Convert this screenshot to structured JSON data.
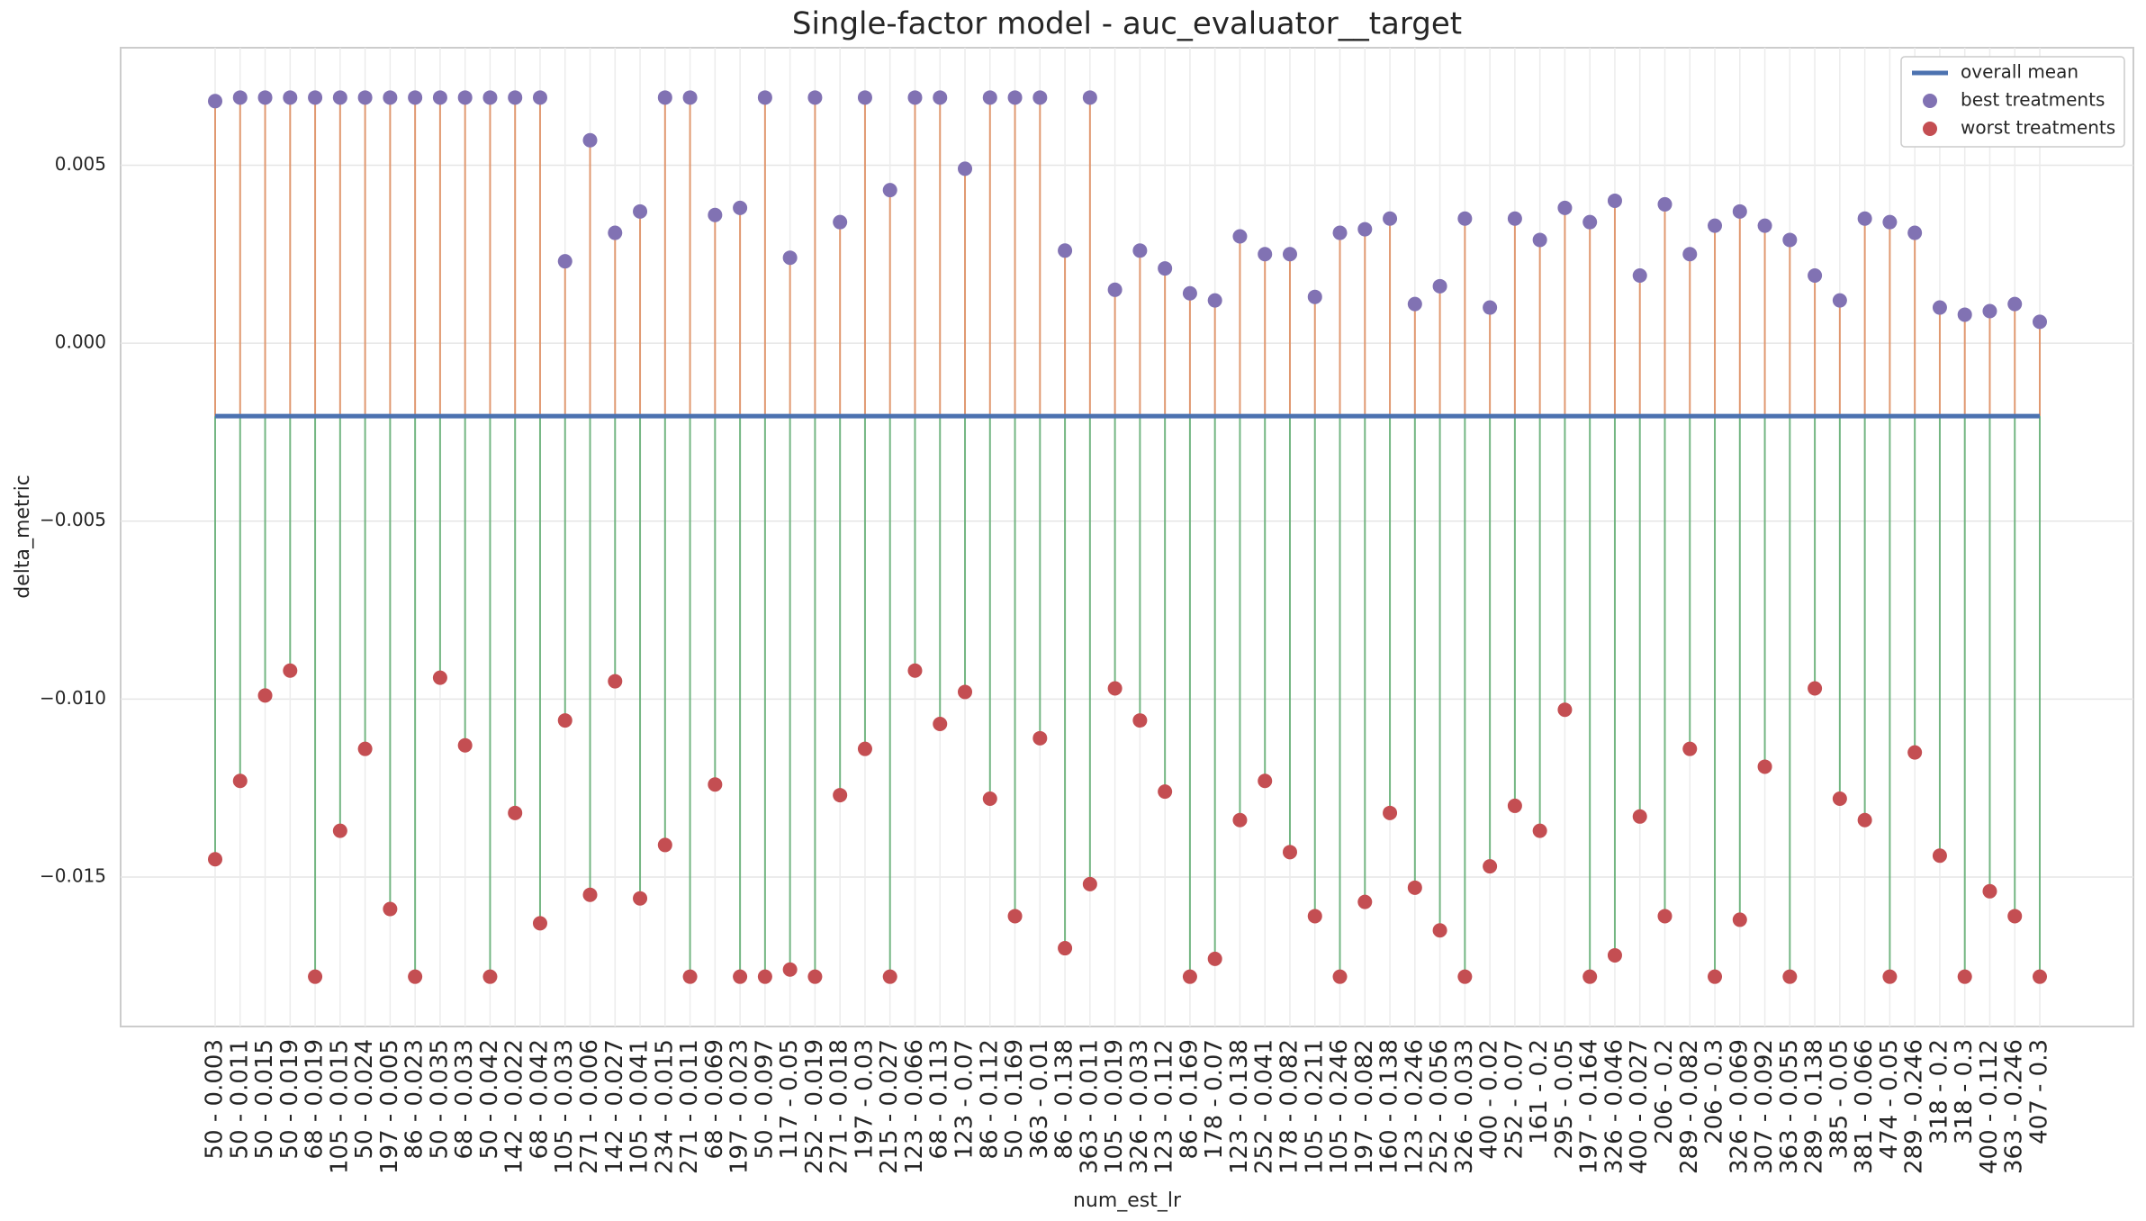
{
  "chart_data": {
    "type": "stem",
    "title": "Single-factor model - auc_evaluator__target",
    "x_label": "num_est_lr",
    "y_label": "delta_metric",
    "categories": [
      "50 - 0.003",
      "50 - 0.011",
      "50 - 0.015",
      "50 - 0.019",
      "68 - 0.019",
      "105 - 0.015",
      "50 - 0.024",
      "197 - 0.005",
      "86 - 0.023",
      "50 - 0.035",
      "68 - 0.033",
      "50 - 0.042",
      "142 - 0.022",
      "68 - 0.042",
      "105 - 0.033",
      "271 - 0.006",
      "142 - 0.027",
      "105 - 0.041",
      "234 - 0.015",
      "271 - 0.011",
      "68 - 0.069",
      "197 - 0.023",
      "50 - 0.097",
      "117 - 0.05",
      "252 - 0.019",
      "271 - 0.018",
      "197 - 0.03",
      "215 - 0.027",
      "123 - 0.066",
      "68 - 0.113",
      "123 - 0.07",
      "86 - 0.112",
      "50 - 0.169",
      "363 - 0.01",
      "86 - 0.138",
      "363 - 0.011",
      "105 - 0.019",
      "326 - 0.033",
      "123 - 0.112",
      "86 - 0.169",
      "178 - 0.07",
      "123 - 0.138",
      "252 - 0.041",
      "178 - 0.082",
      "105 - 0.211",
      "105 - 0.246",
      "197 - 0.082",
      "160 - 0.138",
      "123 - 0.246",
      "252 - 0.056",
      "326 - 0.033",
      "400 - 0.02",
      "252 - 0.07",
      "161 - 0.2",
      "295 - 0.05",
      "197 - 0.164",
      "326 - 0.046",
      "400 - 0.027",
      "206 - 0.2",
      "289 - 0.082",
      "206 - 0.3",
      "326 - 0.069",
      "307 - 0.092",
      "363 - 0.055",
      "289 - 0.138",
      "385 - 0.05",
      "381 - 0.066",
      "474 - 0.05",
      "289 - 0.246",
      "318 - 0.2",
      "318 - 0.3",
      "400 - 0.112",
      "363 - 0.246",
      "407 - 0.3"
    ],
    "mean": {
      "name": "overall mean",
      "color": "#4c72b0",
      "value": -0.00205
    },
    "series": [
      {
        "name": "best treatments",
        "color": "#8172b3",
        "stem_color": "#dd8452",
        "values": [
          0.0068,
          0.0069,
          0.0069,
          0.0069,
          0.0069,
          0.0069,
          0.0069,
          0.0069,
          0.0069,
          0.0069,
          0.0069,
          0.0069,
          0.0069,
          0.0069,
          0.0023,
          0.0057,
          0.0031,
          0.0037,
          0.0069,
          0.0069,
          0.0036,
          0.0038,
          0.0069,
          0.0024,
          0.0069,
          0.0034,
          0.0069,
          0.0043,
          0.0069,
          0.0069,
          0.0049,
          0.0069,
          0.0069,
          0.0069,
          0.0026,
          0.0069,
          0.0015,
          0.0026,
          0.0021,
          0.0014,
          0.0012,
          0.003,
          0.0025,
          0.0025,
          0.0013,
          0.0031,
          0.0032,
          0.0035,
          0.0011,
          0.0016,
          0.0035,
          0.001,
          0.0035,
          0.0029,
          0.0038,
          0.0034,
          0.004,
          0.0019,
          0.0039,
          0.0025,
          0.0033,
          0.0037,
          0.0033,
          0.0029,
          0.0019,
          0.0012,
          0.0035,
          0.0034,
          0.0031,
          0.001,
          0.0008,
          0.0009,
          0.0011,
          0.0006
        ]
      },
      {
        "name": "worst treatments",
        "color": "#c44e52",
        "stem_color": "#55a868",
        "values": [
          -0.0145,
          -0.0123,
          -0.0099,
          -0.0092,
          -0.0178,
          -0.0137,
          -0.0114,
          -0.0159,
          -0.0178,
          -0.0094,
          -0.0113,
          -0.0178,
          -0.0132,
          -0.0163,
          -0.0106,
          -0.0155,
          -0.0095,
          -0.0156,
          -0.0141,
          -0.0178,
          -0.0124,
          -0.0178,
          -0.0178,
          -0.0176,
          -0.0178,
          -0.0127,
          -0.0114,
          -0.0178,
          -0.0092,
          -0.0107,
          -0.0098,
          -0.0128,
          -0.0161,
          -0.0111,
          -0.017,
          -0.0152,
          -0.0097,
          -0.0106,
          -0.0126,
          -0.0178,
          -0.0173,
          -0.0134,
          -0.0123,
          -0.0143,
          -0.0161,
          -0.0178,
          -0.0157,
          -0.0132,
          -0.0153,
          -0.0165,
          -0.0178,
          -0.0147,
          -0.013,
          -0.0137,
          -0.0103,
          -0.0178,
          -0.0172,
          -0.0133,
          -0.0161,
          -0.0114,
          -0.0178,
          -0.0162,
          -0.0119,
          -0.0178,
          -0.0097,
          -0.0128,
          -0.0134,
          -0.0178,
          -0.0115,
          -0.0144,
          -0.0178,
          -0.0154,
          -0.0161,
          -0.0178
        ]
      }
    ],
    "ylim": [
      -0.0192,
      0.0083
    ],
    "yticks": [
      {
        "value": -0.015,
        "label": "−0.015"
      },
      {
        "value": -0.01,
        "label": "−0.010"
      },
      {
        "value": -0.005,
        "label": "−0.005"
      },
      {
        "value": 0,
        "label": "0.000"
      },
      0.005
    ],
    "grid": true,
    "legend": "upper right"
  }
}
